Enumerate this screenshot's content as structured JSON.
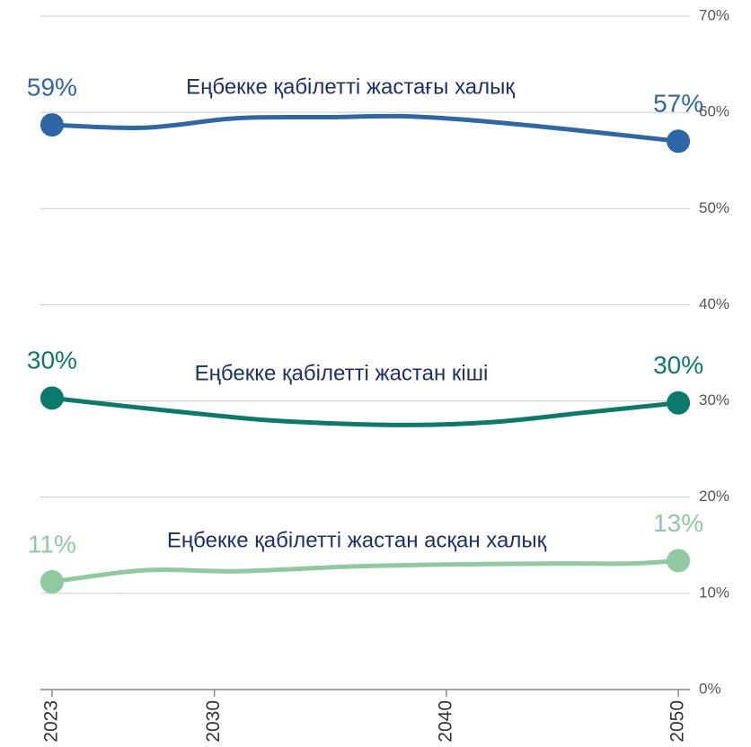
{
  "chart_data": {
    "type": "line",
    "series": [
      {
        "name": "Еңбекке қабілетті жастағы халық",
        "color": "#2e67a6",
        "x": [
          2023,
          2027,
          2031,
          2035,
          2038,
          2041,
          2045,
          2050
        ],
        "values": [
          58.7,
          58.4,
          59.4,
          59.5,
          59.6,
          59.2,
          58.3,
          57.0
        ],
        "value_labels": [
          "59%",
          null,
          null,
          null,
          null,
          null,
          null,
          "57%"
        ]
      },
      {
        "name": "Еңбекке қабілетті жастан кіші",
        "color": "#0a7b6a",
        "x": [
          2023,
          2026,
          2030,
          2033,
          2038,
          2042,
          2046,
          2050
        ],
        "values": [
          30.3,
          29.5,
          28.5,
          27.9,
          27.5,
          27.8,
          28.8,
          29.8
        ],
        "value_labels": [
          "30%",
          null,
          null,
          null,
          null,
          null,
          null,
          "30%"
        ]
      },
      {
        "name": "Еңбекке қабілетті жастан асқан халық",
        "color": "#8fc9a0",
        "x": [
          2023,
          2027,
          2031,
          2036,
          2040,
          2045,
          2048,
          2050
        ],
        "values": [
          11.2,
          12.4,
          12.3,
          12.8,
          13.0,
          13.1,
          13.1,
          13.4
        ],
        "value_labels": [
          "11%",
          null,
          null,
          null,
          null,
          null,
          null,
          "13%"
        ]
      }
    ],
    "xlim": [
      2022.5,
      2050.5
    ],
    "xticks": [
      2023,
      2030,
      2040,
      2050
    ],
    "ylim": [
      0,
      70
    ],
    "yticks": [
      {
        "value": 0,
        "label": "0%"
      },
      {
        "value": 10,
        "label": "10%"
      },
      {
        "value": 20,
        "label": "20%"
      },
      {
        "value": 30,
        "label": "30%"
      },
      {
        "value": 40,
        "label": "40%"
      },
      {
        "value": 50,
        "label": "50%"
      },
      {
        "value": 60,
        "label": "60%"
      },
      {
        "value": 70,
        "label": "70%"
      }
    ],
    "grid": true
  }
}
